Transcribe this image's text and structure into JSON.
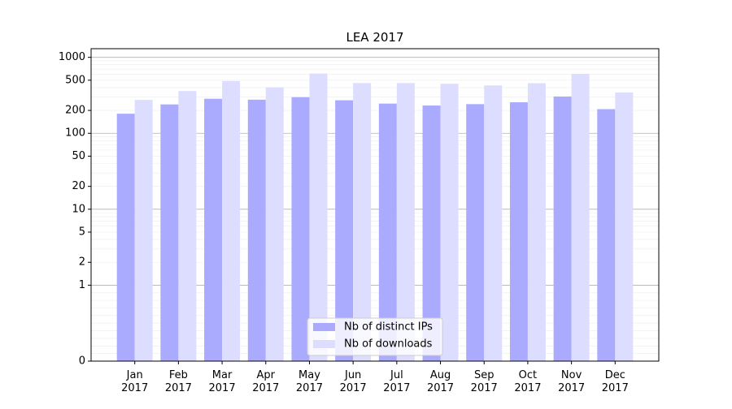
{
  "chart_data": {
    "type": "bar",
    "title": "LEA 2017",
    "xlabel": "",
    "ylabel": "",
    "yscale": "symlog",
    "ylim": [
      0,
      1300
    ],
    "yticks": [
      0,
      1,
      2,
      5,
      10,
      20,
      50,
      100,
      200,
      500,
      1000
    ],
    "categories": [
      [
        "Jan",
        "2017"
      ],
      [
        "Feb",
        "2017"
      ],
      [
        "Mar",
        "2017"
      ],
      [
        "Apr",
        "2017"
      ],
      [
        "May",
        "2017"
      ],
      [
        "Jun",
        "2017"
      ],
      [
        "Jul",
        "2017"
      ],
      [
        "Aug",
        "2017"
      ],
      [
        "Sep",
        "2017"
      ],
      [
        "Oct",
        "2017"
      ],
      [
        "Nov",
        "2017"
      ],
      [
        "Dec",
        "2017"
      ]
    ],
    "series": [
      {
        "name": "Nb of distinct IPs",
        "color": "#aaaaff",
        "values": [
          181,
          240,
          285,
          277,
          299,
          272,
          246,
          232,
          242,
          256,
          305,
          208
        ]
      },
      {
        "name": "Nb of downloads",
        "color": "#ddddff",
        "values": [
          275,
          360,
          488,
          404,
          612,
          459,
          459,
          449,
          427,
          457,
          608,
          345
        ]
      }
    ],
    "grid": true,
    "legend_position": "bottom-center"
  }
}
